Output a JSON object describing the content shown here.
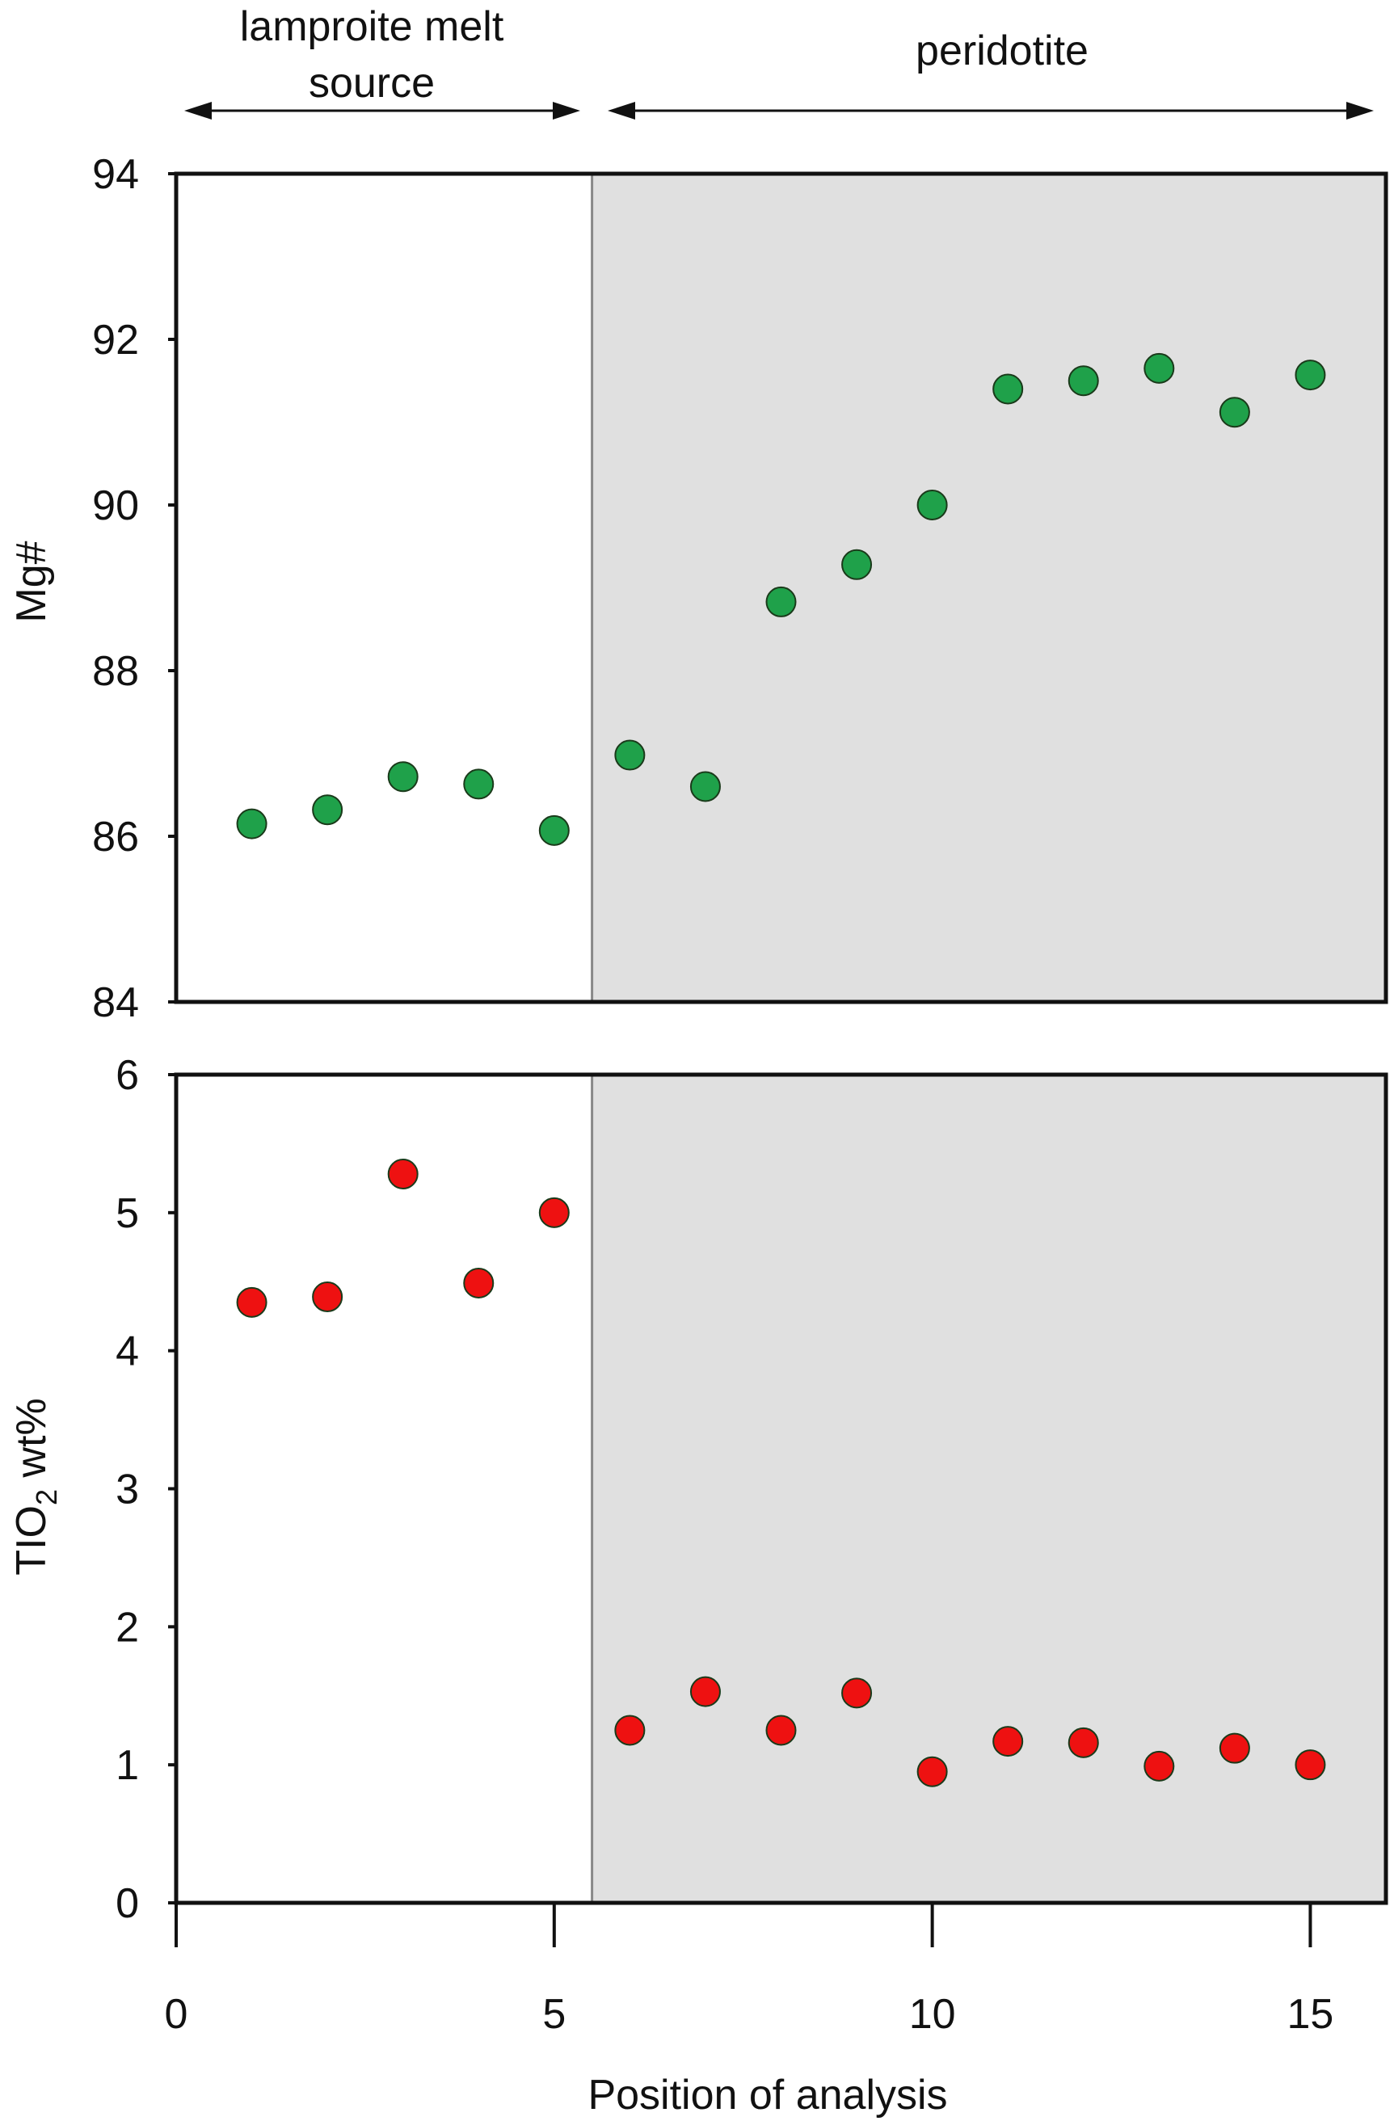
{
  "chart_data": {
    "type": "scatter",
    "title": "",
    "xlabel": "Position of analysis",
    "xlim": [
      0,
      16
    ],
    "x_ticks": [
      0,
      5,
      10,
      15
    ],
    "x_tick_labels": [
      "0",
      "5",
      "10",
      "15"
    ],
    "boundary_x": 5.5,
    "regions": [
      {
        "key": "lamproite",
        "label_lines": [
          "lamproite melt",
          "source"
        ],
        "x_range": [
          0,
          5.5
        ],
        "shaded": false
      },
      {
        "key": "peridotite",
        "label_lines": [
          "peridotite"
        ],
        "x_range": [
          5.5,
          16
        ],
        "shaded": true
      }
    ],
    "panels": [
      {
        "key": "mg",
        "ylabel": "Mg#",
        "ylim": [
          84,
          94
        ],
        "y_ticks": [
          84,
          86,
          88,
          90,
          92,
          94
        ],
        "y_tick_labels": [
          "84",
          "86",
          "88",
          "90",
          "92",
          "94"
        ],
        "series": [
          {
            "name": "Mg#",
            "color": "#1fa14a",
            "x": [
              1,
              2,
              3,
              4,
              5,
              6,
              7,
              8,
              9,
              10,
              11,
              12,
              13,
              14,
              15
            ],
            "y": [
              86.15,
              86.32,
              86.72,
              86.63,
              86.07,
              86.98,
              86.6,
              88.83,
              89.28,
              90.0,
              91.4,
              91.5,
              91.65,
              91.12,
              91.57
            ]
          }
        ]
      },
      {
        "key": "tio2",
        "ylabel_parts": {
          "main": "TIO",
          "sub": "2",
          "rest": " wt%"
        },
        "ylim": [
          0,
          6
        ],
        "y_ticks": [
          0,
          1,
          2,
          3,
          4,
          5,
          6
        ],
        "y_tick_labels": [
          "0",
          "1",
          "2",
          "3",
          "4",
          "5",
          "6"
        ],
        "series": [
          {
            "name": "TiO2 wt%",
            "color": "#ee1111",
            "x": [
              1,
              2,
              3,
              4,
              5,
              6,
              7,
              8,
              9,
              10,
              11,
              12,
              13,
              14,
              15
            ],
            "y": [
              4.35,
              4.39,
              5.28,
              4.49,
              5.0,
              1.25,
              1.53,
              1.25,
              1.52,
              0.95,
              1.17,
              1.16,
              0.99,
              1.12,
              1.0
            ]
          }
        ]
      }
    ]
  },
  "colors": {
    "shade": "#e0e0e0",
    "frame": "#111111",
    "boundary_line": "#888888",
    "marker_stroke": "#1a3a1a"
  }
}
